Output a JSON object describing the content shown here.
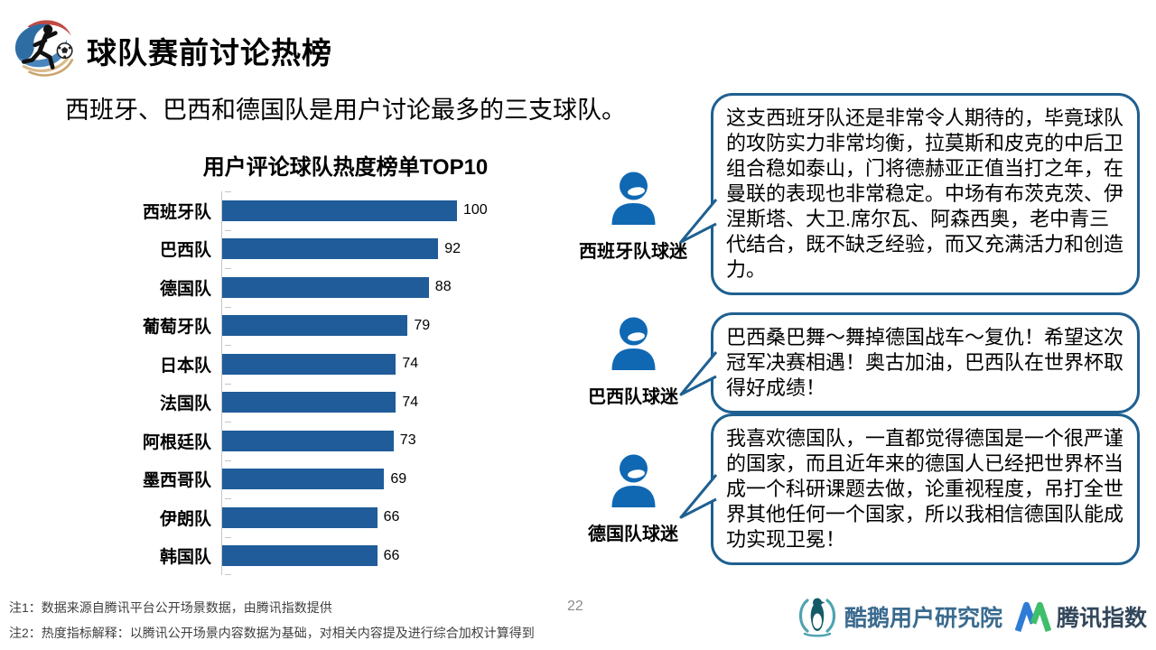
{
  "header": {
    "title": "球队赛前讨论热榜"
  },
  "subtitle": "西班牙、巴西和德国队是用户讨论最多的三支球队。",
  "chart_data": {
    "type": "bar",
    "orientation": "horizontal",
    "title": "用户评论球队热度榜单TOP10",
    "categories": [
      "西班牙队",
      "巴西队",
      "德国队",
      "葡萄牙队",
      "日本队",
      "法国队",
      "阿根廷队",
      "墨西哥队",
      "伊朗队",
      "韩国队"
    ],
    "values": [
      100,
      92,
      88,
      79,
      74,
      74,
      73,
      69,
      66,
      66
    ],
    "xlim": [
      0,
      100
    ],
    "value_labels": true,
    "grid": false,
    "bar_color": "#1F5C99"
  },
  "fans": [
    {
      "label": "西班牙队球迷",
      "quote": "这支西班牙队还是非常令人期待的，毕竟球队的攻防实力非常均衡，拉莫斯和皮克的中后卫组合稳如泰山，门将德赫亚正值当打之年，在曼联的表现也非常稳定。中场有布茨克茨、伊涅斯塔、大卫.席尔瓦、阿森西奥，老中青三代结合，既不缺乏经验，而又充满活力和创造力。"
    },
    {
      "label": "巴西队球迷",
      "quote": "巴西桑巴舞～舞掉德国战车～复仇！希望这次冠军决赛相遇！奥古加油，巴西队在世界杯取得好成绩！"
    },
    {
      "label": "德国队球迷",
      "quote": "我喜欢德国队，一直都觉得德国是一个很严谨的国家，而且近年来的德国人已经把世界杯当成一个科研课题去做，论重视程度，吊打全世界其他任何一个国家，所以我相信德国队能成功实现卫冕！"
    }
  ],
  "footer": {
    "note1": "注1：数据来源自腾讯平台公开场景数据，由腾讯指数提供",
    "note2": "注2：热度指标解释：以腾讯公开场景内容数据为基础，对相关内容提及进行综合加权计算得到",
    "page_number": "22",
    "logos": [
      {
        "name": "酷鹅用户研究院"
      },
      {
        "name": "腾讯指数"
      }
    ]
  },
  "icons": {
    "header": "runner-with-ball-icon",
    "fan": "person-icon",
    "logo1": "penguin-icon",
    "logo2": "m-index-icon"
  },
  "colors": {
    "bar": "#1F5C99",
    "fan_icon": "#1068B3",
    "bubble_border": "#1F6091",
    "axis": "#C6C6C6",
    "logo1_text": "#3A6B8F",
    "logo2_text": "#33475B"
  }
}
